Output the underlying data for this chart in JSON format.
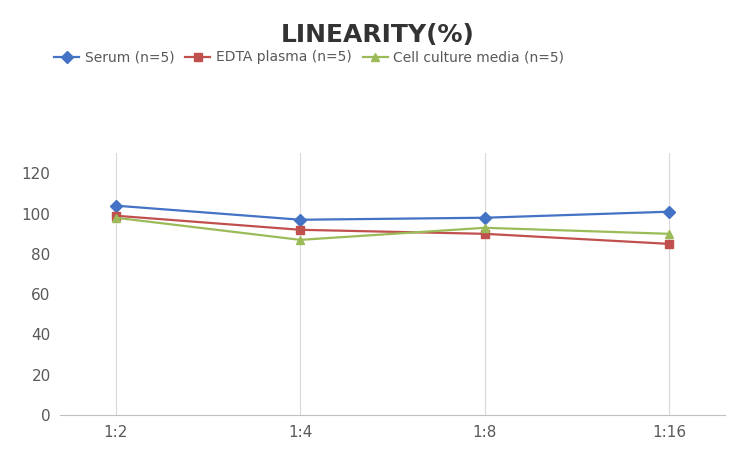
{
  "title": "LINEARITY(%)",
  "x_labels": [
    "1:2",
    "1:4",
    "1:8",
    "1:16"
  ],
  "x_positions": [
    0,
    1,
    2,
    3
  ],
  "series": [
    {
      "label": "Serum (n=5)",
      "values": [
        104,
        97,
        98,
        101
      ],
      "color": "#4472C4",
      "marker": "D",
      "marker_size": 6,
      "linewidth": 1.6
    },
    {
      "label": "EDTA plasma (n=5)",
      "values": [
        99,
        92,
        90,
        85
      ],
      "color": "#C0504D",
      "marker": "s",
      "marker_size": 6,
      "linewidth": 1.6
    },
    {
      "label": "Cell culture media (n=5)",
      "values": [
        98,
        87,
        93,
        90
      ],
      "color": "#9BBB59",
      "marker": "^",
      "marker_size": 6,
      "linewidth": 1.6
    }
  ],
  "ylim": [
    0,
    130
  ],
  "yticks": [
    0,
    20,
    40,
    60,
    80,
    100,
    120
  ],
  "xlim": [
    -0.3,
    3.3
  ],
  "grid_color": "#D9D9D9",
  "background_color": "#FFFFFF",
  "title_fontsize": 18,
  "title_fontweight": "bold",
  "legend_fontsize": 10,
  "tick_fontsize": 11,
  "tick_color": "#595959"
}
